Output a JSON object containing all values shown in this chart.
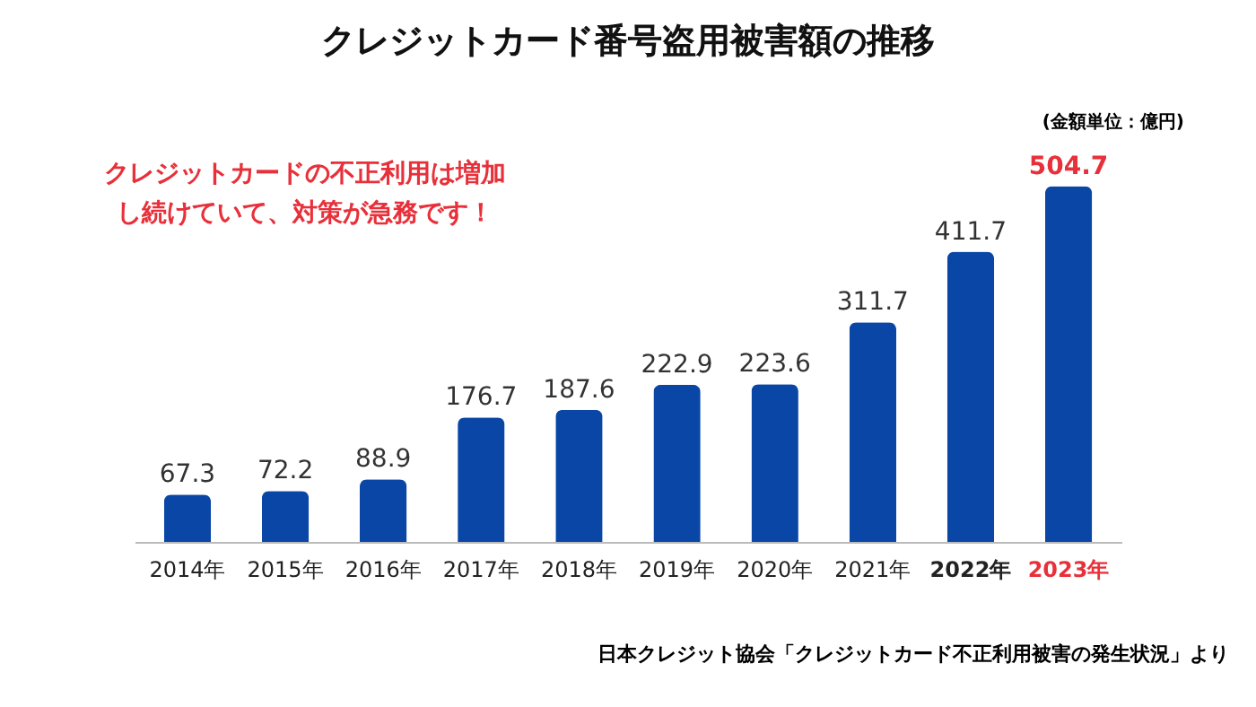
{
  "chart_data": {
    "type": "bar",
    "title": "クレジットカード番号盗用被害額の推移",
    "subtitle": "(金額単位：億円)",
    "categories": [
      "2014年",
      "2015年",
      "2016年",
      "2017年",
      "2018年",
      "2019年",
      "2020年",
      "2021年",
      "2022年",
      "2023年"
    ],
    "values": [
      67.3,
      72.2,
      88.9,
      176.7,
      187.6,
      222.9,
      223.6,
      311.7,
      411.7,
      504.7
    ],
    "color": "#0a46a5",
    "data_labels": true,
    "grid": false,
    "annotations": [
      "クレジットカードの不正利用は増加し続けていて、対策が急務です！",
      "日本クレジット協会「クレジットカード不正利用被害の発生状況」より"
    ]
  }
}
